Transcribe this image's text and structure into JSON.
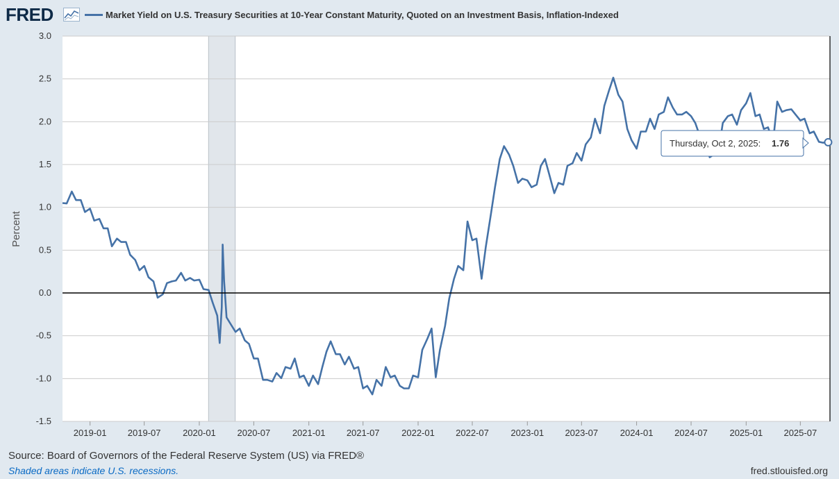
{
  "header": {
    "logo": "FRED",
    "logo_icon": "line-chart-icon",
    "series_title": "Market Yield on U.S. Treasury Securities at 10-Year Constant Maturity, Quoted on an Investment Basis, Inflation-Indexed"
  },
  "footer": {
    "source": "Source: Board of Governors of the Federal Reserve System (US) via FRED®",
    "recession_note": "Shaded areas indicate U.S. recessions.",
    "site": "fred.stlouisfed.org"
  },
  "colors": {
    "series": "#4572a7",
    "recession": "#e1e6eb",
    "background": "#e1e9f0",
    "plot": "#ffffff",
    "grid": "#cccccc"
  },
  "chart_data": {
    "type": "line",
    "title": "Market Yield on U.S. Treasury Securities at 10-Year Constant Maturity, Quoted on an Investment Basis, Inflation-Indexed",
    "xlabel": "",
    "ylabel": "Percent",
    "ylim": [
      -1.5,
      3.0
    ],
    "y_ticks": [
      "3.0",
      "2.5",
      "2.0",
      "1.5",
      "1.0",
      "0.5",
      "0.0",
      "-0.5",
      "-1.0",
      "-1.5"
    ],
    "x_ticks": [
      "2019-01",
      "2019-07",
      "2020-01",
      "2020-07",
      "2021-01",
      "2021-07",
      "2022-01",
      "2022-07",
      "2023-01",
      "2023-07",
      "2024-01",
      "2024-07",
      "2025-01",
      "2025-07"
    ],
    "x_range": [
      "2018-10-01",
      "2025-10-08"
    ],
    "recessions": [
      {
        "start": "2020-02-01",
        "end": "2020-04-30"
      }
    ],
    "series": [
      {
        "name": "Market Yield on U.S. Treasury Securities at 10-Year Constant Maturity, Quoted on an Investment Basis, Inflation-Indexed",
        "points": [
          [
            "2018-10-01",
            1.05
          ],
          [
            "2018-10-15",
            1.08
          ],
          [
            "2018-11-01",
            1.15
          ],
          [
            "2018-11-15",
            1.12
          ],
          [
            "2018-12-01",
            1.05
          ],
          [
            "2018-12-15",
            0.98
          ],
          [
            "2019-01-01",
            0.95
          ],
          [
            "2019-01-15",
            0.88
          ],
          [
            "2019-02-01",
            0.83
          ],
          [
            "2019-02-15",
            0.79
          ],
          [
            "2019-03-01",
            0.72
          ],
          [
            "2019-03-15",
            0.58
          ],
          [
            "2019-04-01",
            0.6
          ],
          [
            "2019-04-15",
            0.63
          ],
          [
            "2019-05-01",
            0.56
          ],
          [
            "2019-05-15",
            0.48
          ],
          [
            "2019-06-01",
            0.35
          ],
          [
            "2019-06-15",
            0.3
          ],
          [
            "2019-07-01",
            0.28
          ],
          [
            "2019-07-15",
            0.22
          ],
          [
            "2019-08-01",
            0.1
          ],
          [
            "2019-08-15",
            -0.02
          ],
          [
            "2019-09-01",
            -0.05
          ],
          [
            "2019-09-15",
            0.15
          ],
          [
            "2019-10-01",
            0.1
          ],
          [
            "2019-10-15",
            0.18
          ],
          [
            "2019-11-01",
            0.2
          ],
          [
            "2019-11-15",
            0.18
          ],
          [
            "2019-12-01",
            0.14
          ],
          [
            "2019-12-15",
            0.18
          ],
          [
            "2020-01-01",
            0.12
          ],
          [
            "2020-01-15",
            0.08
          ],
          [
            "2020-02-01",
            0.0
          ],
          [
            "2020-02-15",
            -0.08
          ],
          [
            "2020-03-01",
            -0.3
          ],
          [
            "2020-03-09",
            -0.55
          ],
          [
            "2020-03-16",
            -0.2
          ],
          [
            "2020-03-19",
            0.6
          ],
          [
            "2020-03-24",
            0.1
          ],
          [
            "2020-04-01",
            -0.25
          ],
          [
            "2020-04-15",
            -0.4
          ],
          [
            "2020-05-01",
            -0.42
          ],
          [
            "2020-05-15",
            -0.45
          ],
          [
            "2020-06-01",
            -0.52
          ],
          [
            "2020-06-15",
            -0.63
          ],
          [
            "2020-07-01",
            -0.73
          ],
          [
            "2020-07-15",
            -0.8
          ],
          [
            "2020-08-01",
            -0.98
          ],
          [
            "2020-08-15",
            -1.05
          ],
          [
            "2020-09-01",
            -1.0
          ],
          [
            "2020-09-15",
            -0.97
          ],
          [
            "2020-10-01",
            -0.96
          ],
          [
            "2020-10-15",
            -0.9
          ],
          [
            "2020-11-01",
            -0.85
          ],
          [
            "2020-11-15",
            -0.8
          ],
          [
            "2020-12-01",
            -0.95
          ],
          [
            "2020-12-15",
            -1.0
          ],
          [
            "2021-01-01",
            -1.05
          ],
          [
            "2021-01-15",
            -1.0
          ],
          [
            "2021-02-01",
            -1.03
          ],
          [
            "2021-02-15",
            -0.9
          ],
          [
            "2021-03-01",
            -0.65
          ],
          [
            "2021-03-15",
            -0.6
          ],
          [
            "2021-04-01",
            -0.68
          ],
          [
            "2021-04-15",
            -0.75
          ],
          [
            "2021-05-01",
            -0.8
          ],
          [
            "2021-05-15",
            -0.78
          ],
          [
            "2021-06-01",
            -0.85
          ],
          [
            "2021-06-15",
            -0.9
          ],
          [
            "2021-07-01",
            -1.08
          ],
          [
            "2021-07-15",
            -1.12
          ],
          [
            "2021-08-01",
            -1.15
          ],
          [
            "2021-08-15",
            -1.05
          ],
          [
            "2021-09-01",
            -1.05
          ],
          [
            "2021-09-15",
            -0.9
          ],
          [
            "2021-10-01",
            -0.95
          ],
          [
            "2021-10-15",
            -1.0
          ],
          [
            "2021-11-01",
            -1.05
          ],
          [
            "2021-11-15",
            -1.15
          ],
          [
            "2021-12-01",
            -1.08
          ],
          [
            "2021-12-15",
            -1.0
          ],
          [
            "2022-01-01",
            -0.95
          ],
          [
            "2022-01-15",
            -0.7
          ],
          [
            "2022-02-01",
            -0.5
          ],
          [
            "2022-02-15",
            -0.45
          ],
          [
            "2022-03-01",
            -0.95
          ],
          [
            "2022-03-15",
            -0.7
          ],
          [
            "2022-04-01",
            -0.35
          ],
          [
            "2022-04-15",
            -0.1
          ],
          [
            "2022-05-01",
            0.2
          ],
          [
            "2022-05-15",
            0.28
          ],
          [
            "2022-06-01",
            0.3
          ],
          [
            "2022-06-15",
            0.8
          ],
          [
            "2022-07-01",
            0.65
          ],
          [
            "2022-07-15",
            0.6
          ],
          [
            "2022-08-01",
            0.2
          ],
          [
            "2022-08-15",
            0.5
          ],
          [
            "2022-09-01",
            0.95
          ],
          [
            "2022-09-15",
            1.2
          ],
          [
            "2022-10-01",
            1.6
          ],
          [
            "2022-10-15",
            1.68
          ],
          [
            "2022-11-01",
            1.65
          ],
          [
            "2022-11-15",
            1.45
          ],
          [
            "2022-12-01",
            1.32
          ],
          [
            "2022-12-15",
            1.3
          ],
          [
            "2023-01-01",
            1.35
          ],
          [
            "2023-01-15",
            1.2
          ],
          [
            "2023-02-01",
            1.3
          ],
          [
            "2023-02-15",
            1.45
          ],
          [
            "2023-03-01",
            1.6
          ],
          [
            "2023-03-15",
            1.35
          ],
          [
            "2023-04-01",
            1.2
          ],
          [
            "2023-04-15",
            1.25
          ],
          [
            "2023-05-01",
            1.3
          ],
          [
            "2023-05-15",
            1.45
          ],
          [
            "2023-06-01",
            1.55
          ],
          [
            "2023-06-15",
            1.6
          ],
          [
            "2023-07-01",
            1.58
          ],
          [
            "2023-07-15",
            1.7
          ],
          [
            "2023-08-01",
            1.85
          ],
          [
            "2023-08-15",
            2.0
          ],
          [
            "2023-09-01",
            1.9
          ],
          [
            "2023-09-15",
            2.15
          ],
          [
            "2023-10-01",
            2.4
          ],
          [
            "2023-10-15",
            2.48
          ],
          [
            "2023-11-01",
            2.35
          ],
          [
            "2023-11-15",
            2.2
          ],
          [
            "2023-12-01",
            1.95
          ],
          [
            "2023-12-15",
            1.75
          ],
          [
            "2024-01-01",
            1.72
          ],
          [
            "2024-01-15",
            1.85
          ],
          [
            "2024-02-01",
            1.92
          ],
          [
            "2024-02-15",
            2.0
          ],
          [
            "2024-03-01",
            1.95
          ],
          [
            "2024-03-15",
            2.05
          ],
          [
            "2024-04-01",
            2.15
          ],
          [
            "2024-04-15",
            2.25
          ],
          [
            "2024-05-01",
            2.2
          ],
          [
            "2024-05-15",
            2.05
          ],
          [
            "2024-06-01",
            2.12
          ],
          [
            "2024-06-15",
            2.08
          ],
          [
            "2024-07-01",
            2.1
          ],
          [
            "2024-07-15",
            1.95
          ],
          [
            "2024-08-01",
            1.85
          ],
          [
            "2024-08-15",
            1.78
          ],
          [
            "2024-09-01",
            1.62
          ],
          [
            "2024-09-15",
            1.58
          ],
          [
            "2024-10-01",
            1.7
          ],
          [
            "2024-10-15",
            1.95
          ],
          [
            "2024-11-01",
            2.1
          ],
          [
            "2024-11-15",
            2.05
          ],
          [
            "2024-12-01",
            2.0
          ],
          [
            "2024-12-15",
            2.1
          ],
          [
            "2025-01-01",
            2.25
          ],
          [
            "2025-01-15",
            2.3
          ],
          [
            "2025-02-01",
            2.1
          ],
          [
            "2025-02-15",
            2.05
          ],
          [
            "2025-03-01",
            1.95
          ],
          [
            "2025-03-15",
            1.9
          ],
          [
            "2025-04-01",
            1.8
          ],
          [
            "2025-04-15",
            2.2
          ],
          [
            "2025-05-01",
            2.15
          ],
          [
            "2025-05-15",
            2.1
          ],
          [
            "2025-06-01",
            2.18
          ],
          [
            "2025-06-15",
            2.05
          ],
          [
            "2025-07-01",
            2.05
          ],
          [
            "2025-07-15",
            2.0
          ],
          [
            "2025-08-01",
            1.9
          ],
          [
            "2025-08-15",
            1.85
          ],
          [
            "2025-09-01",
            1.8
          ],
          [
            "2025-09-15",
            1.72
          ],
          [
            "2025-10-02",
            1.76
          ]
        ]
      }
    ],
    "tooltip": {
      "label": "Thursday, Oct 2, 2025:",
      "value": "1.76",
      "date": "2025-10-02"
    }
  }
}
